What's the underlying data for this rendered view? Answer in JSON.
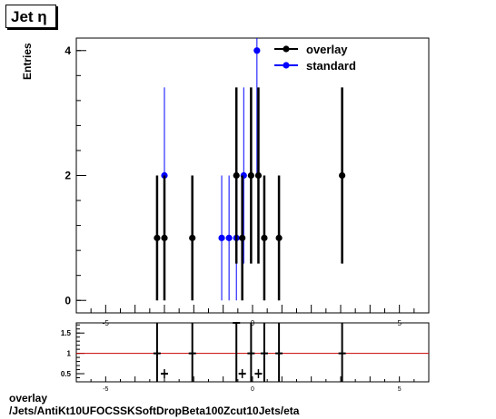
{
  "header": {
    "title": "Jet  η"
  },
  "footer": {
    "line1": "overlay",
    "line2": "/Jets/AntiKt10UFOCSSKSoftDropBeta100Zcut10Jets/eta"
  },
  "chart_data": [
    {
      "type": "scatter",
      "title": "Jet  η",
      "xlabel": "",
      "ylabel": "Entries",
      "xlim": [
        -6,
        6
      ],
      "ylim": [
        -0.2,
        4.2
      ],
      "y_ticks": [
        0,
        2,
        4
      ],
      "x_ticks": [
        -5,
        0,
        5
      ],
      "grid": false,
      "legend_position": "top-right",
      "series": [
        {
          "name": "overlay",
          "color": "#000000",
          "points": [
            {
              "x": -3.25,
              "y": 1,
              "err": 1
            },
            {
              "x": -3.0,
              "y": 1,
              "err": 1
            },
            {
              "x": -2.05,
              "y": 1,
              "err": 1
            },
            {
              "x": -0.55,
              "y": 2,
              "err": 1.41
            },
            {
              "x": -0.35,
              "y": 1,
              "err": 1
            },
            {
              "x": -0.05,
              "y": 2,
              "err": 1.41
            },
            {
              "x": 0.2,
              "y": 2,
              "err": 1.41
            },
            {
              "x": 0.4,
              "y": 1,
              "err": 1
            },
            {
              "x": 0.9,
              "y": 1,
              "err": 1
            },
            {
              "x": 3.05,
              "y": 2,
              "err": 1.41
            }
          ]
        },
        {
          "name": "standard",
          "color": "#0000ff",
          "points": [
            {
              "x": -3.0,
              "y": 2,
              "err": 1.41
            },
            {
              "x": -1.05,
              "y": 1,
              "err": 1
            },
            {
              "x": -0.8,
              "y": 1,
              "err": 1
            },
            {
              "x": -0.55,
              "y": 1,
              "err": 1
            },
            {
              "x": -0.3,
              "y": 2,
              "err": 1.41
            },
            {
              "x": 0.15,
              "y": 4,
              "err": 2
            }
          ]
        }
      ]
    },
    {
      "type": "scatter",
      "title": "",
      "xlabel": "",
      "ylabel": "",
      "xlim": [
        -6,
        6
      ],
      "ylim": [
        0.3,
        1.75
      ],
      "y_ticks": [
        0.5,
        1,
        1.5
      ],
      "y_tick_labels": [
        "0.5",
        "1",
        "1.5"
      ],
      "x_ticks": [
        -5,
        0,
        5
      ],
      "reference_line": {
        "y": 1,
        "color": "#cc0000"
      },
      "series": [
        {
          "name": "overlay/standard",
          "color": "#000000",
          "points": [
            {
              "x": -3.25,
              "y": 1
            },
            {
              "x": -3.0,
              "y": 0.5
            },
            {
              "x": -2.05,
              "y": 1
            },
            {
              "x": -0.55,
              "y": 2
            },
            {
              "x": -0.35,
              "y": 0.5
            },
            {
              "x": -0.05,
              "y": 1
            },
            {
              "x": 0.2,
              "y": 0.5
            },
            {
              "x": 0.4,
              "y": 1
            },
            {
              "x": 0.9,
              "y": 1
            },
            {
              "x": 3.05,
              "y": 1
            }
          ]
        }
      ]
    }
  ]
}
